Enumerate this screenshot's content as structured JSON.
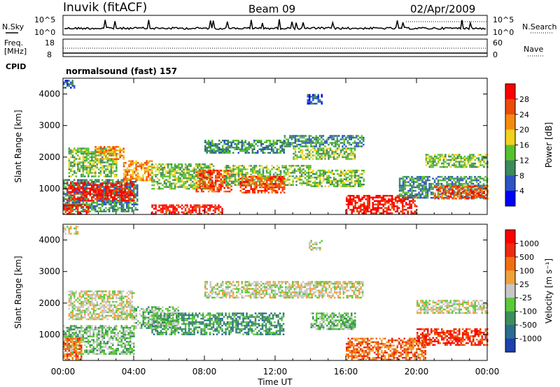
{
  "header": {
    "station": "Inuvik (fitACF)",
    "beam": "Beam 09",
    "date": "02/Apr/2009"
  },
  "left_labels": {
    "nsky": "N.Sky",
    "freq_line1": "Freq.",
    "freq_line2": "[MHz]",
    "cpid": "CPID"
  },
  "right_labels": {
    "nsearch": "N.Search",
    "nave": "Nave"
  },
  "noise_panel": {
    "left_ticks": [
      "10^5",
      "10^0"
    ],
    "right_ticks": [
      "10^5",
      "10^0"
    ]
  },
  "freq_panel": {
    "left_ticks": [
      "18",
      "8"
    ],
    "right_ticks": [
      "60",
      "0"
    ]
  },
  "cpid_panel": {
    "text": "normalsound (fast) 157"
  },
  "x_axis": {
    "label": "Time UT",
    "ticks": [
      "00:00",
      "04:00",
      "08:00",
      "12:00",
      "16:00",
      "20:00",
      "00:00"
    ]
  },
  "chart_data": [
    {
      "type": "heatmap",
      "name": "power",
      "xlabel": "Time UT",
      "ylabel": "Slant Range [km]",
      "xlim": [
        0,
        24
      ],
      "ylim": [
        180,
        4500
      ],
      "y_ticks": [
        1000,
        2000,
        3000,
        4000
      ],
      "colorbar": {
        "label": "Power [dB]",
        "ticks": [
          "4",
          "8",
          "12",
          "16",
          "20",
          "24",
          "28"
        ],
        "colors": [
          "#0000ff",
          "#2c54c4",
          "#3d8a5c",
          "#58c030",
          "#f2d21e",
          "#f58b0e",
          "#ee4a08",
          "#ff0000"
        ]
      },
      "regions": [
        {
          "t0": 0.0,
          "t1": 0.6,
          "r0": 4200,
          "r1": 4450,
          "level": 1
        },
        {
          "t0": 0.3,
          "t1": 3.0,
          "r0": 1400,
          "r1": 2300,
          "level": 3
        },
        {
          "t0": 1.8,
          "t1": 3.4,
          "r0": 1950,
          "r1": 2350,
          "level": 5
        },
        {
          "t0": 0.0,
          "t1": 4.2,
          "r0": 300,
          "r1": 1300,
          "level": 2
        },
        {
          "t0": 0.2,
          "t1": 4.0,
          "r0": 600,
          "r1": 1200,
          "level": 7
        },
        {
          "t0": 0.0,
          "t1": 1.4,
          "r0": 200,
          "r1": 500,
          "level": 7
        },
        {
          "t0": 3.4,
          "t1": 5.0,
          "r0": 1250,
          "r1": 1900,
          "level": 5
        },
        {
          "t0": 5.0,
          "t1": 8.5,
          "r0": 1000,
          "r1": 1800,
          "level": 3
        },
        {
          "t0": 5.0,
          "t1": 9.0,
          "r0": 200,
          "r1": 500,
          "level": 7
        },
        {
          "t0": 7.5,
          "t1": 9.5,
          "r0": 900,
          "r1": 1600,
          "level": 6
        },
        {
          "t0": 9.0,
          "t1": 14.0,
          "r0": 1100,
          "r1": 1750,
          "level": 3
        },
        {
          "t0": 10.0,
          "t1": 12.5,
          "r0": 900,
          "r1": 1400,
          "level": 6
        },
        {
          "t0": 8.0,
          "t1": 12.5,
          "r0": 2150,
          "r1": 2550,
          "level": 2
        },
        {
          "t0": 12.5,
          "t1": 17.0,
          "r0": 2350,
          "r1": 2700,
          "level": 2
        },
        {
          "t0": 13.0,
          "t1": 16.5,
          "r0": 1950,
          "r1": 2300,
          "level": 3
        },
        {
          "t0": 14.0,
          "t1": 17.0,
          "r0": 1100,
          "r1": 1600,
          "level": 3
        },
        {
          "t0": 16.0,
          "t1": 20.0,
          "r0": 200,
          "r1": 800,
          "level": 7
        },
        {
          "t0": 19.0,
          "t1": 24.0,
          "r0": 700,
          "r1": 1400,
          "level": 2
        },
        {
          "t0": 21.0,
          "t1": 24.0,
          "r0": 700,
          "r1": 1100,
          "level": 6
        },
        {
          "t0": 20.5,
          "t1": 24.0,
          "r0": 1700,
          "r1": 2100,
          "level": 3
        },
        {
          "t0": 13.8,
          "t1": 14.6,
          "r0": 3700,
          "r1": 4000,
          "level": 1
        }
      ]
    },
    {
      "type": "heatmap",
      "name": "velocity",
      "xlabel": "Time UT",
      "ylabel": "Slant Range [km]",
      "xlim": [
        0,
        24
      ],
      "ylim": [
        180,
        4500
      ],
      "y_ticks": [
        1000,
        2000,
        3000,
        4000
      ],
      "colorbar": {
        "label": "Velocity [m s⁻¹]",
        "ticks": [
          "1000",
          "500",
          "100",
          "25",
          "-25",
          "-100",
          "-500",
          "-1000"
        ],
        "colors": [
          "#1e3fb0",
          "#2b6d8c",
          "#3b8f5c",
          "#5cc83a",
          "#c8c8c8",
          "#f0a23a",
          "#f07010",
          "#ee2a10",
          "#ff0000"
        ]
      },
      "regions": [
        {
          "t0": 0.0,
          "t1": 0.8,
          "r0": 4200,
          "r1": 4450,
          "level": 4
        },
        {
          "t0": 0.3,
          "t1": 4.0,
          "r0": 1500,
          "r1": 2400,
          "level": 4
        },
        {
          "t0": 0.0,
          "t1": 4.0,
          "r0": 400,
          "r1": 1300,
          "level": 3
        },
        {
          "t0": 0.0,
          "t1": 1.0,
          "r0": 200,
          "r1": 900,
          "level": 6
        },
        {
          "t0": 5.0,
          "t1": 12.5,
          "r0": 1000,
          "r1": 1700,
          "level": 2
        },
        {
          "t0": 4.0,
          "t1": 6.5,
          "r0": 1200,
          "r1": 1900,
          "level": 3
        },
        {
          "t0": 8.0,
          "t1": 17.0,
          "r0": 2200,
          "r1": 2700,
          "level": 4
        },
        {
          "t0": 16.0,
          "t1": 20.5,
          "r0": 200,
          "r1": 900,
          "level": 6
        },
        {
          "t0": 20.0,
          "t1": 24.0,
          "r0": 700,
          "r1": 1200,
          "level": 7
        },
        {
          "t0": 20.0,
          "t1": 24.0,
          "r0": 1700,
          "r1": 2100,
          "level": 4
        },
        {
          "t0": 14.0,
          "t1": 16.5,
          "r0": 1200,
          "r1": 1700,
          "level": 3
        },
        {
          "t0": 13.8,
          "t1": 14.6,
          "r0": 3700,
          "r1": 4000,
          "level": 4
        }
      ]
    }
  ]
}
